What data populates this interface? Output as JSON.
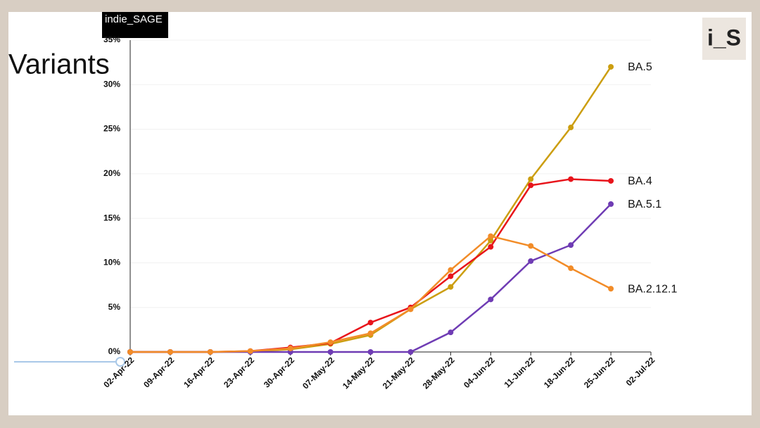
{
  "logo": "indie_SAGE",
  "badge": "i_S",
  "chart_data": {
    "type": "line",
    "title": "Variants",
    "categories": [
      "02-Apr-22",
      "09-Apr-22",
      "16-Apr-22",
      "23-Apr-22",
      "30-Apr-22",
      "07-May-22",
      "14-May-22",
      "21-May-22",
      "28-May-22",
      "04-Jun-22",
      "11-Jun-22",
      "18-Jun-22",
      "25-Jun-22",
      "02-Jul-22"
    ],
    "series": [
      {
        "name": "BA.5",
        "color": "#cc9e10",
        "values": [
          0,
          0,
          0,
          0.05,
          0.3,
          0.9,
          1.9,
          4.8,
          7.3,
          12.5,
          19.4,
          25.2,
          32.0,
          null
        ]
      },
      {
        "name": "BA.4",
        "color": "#e8141b",
        "values": [
          0,
          0,
          0,
          0.1,
          0.5,
          1.0,
          3.3,
          5.0,
          8.5,
          11.8,
          18.7,
          19.4,
          19.2,
          null
        ]
      },
      {
        "name": "BA.5.1",
        "color": "#6f3cb4",
        "values": [
          0,
          0,
          0,
          0,
          0,
          0,
          0,
          0,
          2.2,
          5.9,
          10.2,
          12.0,
          16.6,
          null
        ]
      },
      {
        "name": "BA.2.12.1",
        "color": "#f28c28",
        "values": [
          0,
          0,
          0,
          0.1,
          0.4,
          1.1,
          2.1,
          4.8,
          9.2,
          13.0,
          11.9,
          9.4,
          7.1,
          null
        ]
      }
    ],
    "ylim": [
      0,
      35
    ],
    "yticks": [
      {
        "value": 0,
        "label": "0%"
      },
      {
        "value": 5,
        "label": "5%"
      },
      {
        "value": 10,
        "label": "10%"
      },
      {
        "value": 15,
        "label": "15%"
      },
      {
        "value": 20,
        "label": "20%"
      },
      {
        "value": 25,
        "label": "25%"
      },
      {
        "value": 30,
        "label": "30%"
      },
      {
        "value": 35,
        "label": "35%"
      }
    ],
    "grid": true
  }
}
